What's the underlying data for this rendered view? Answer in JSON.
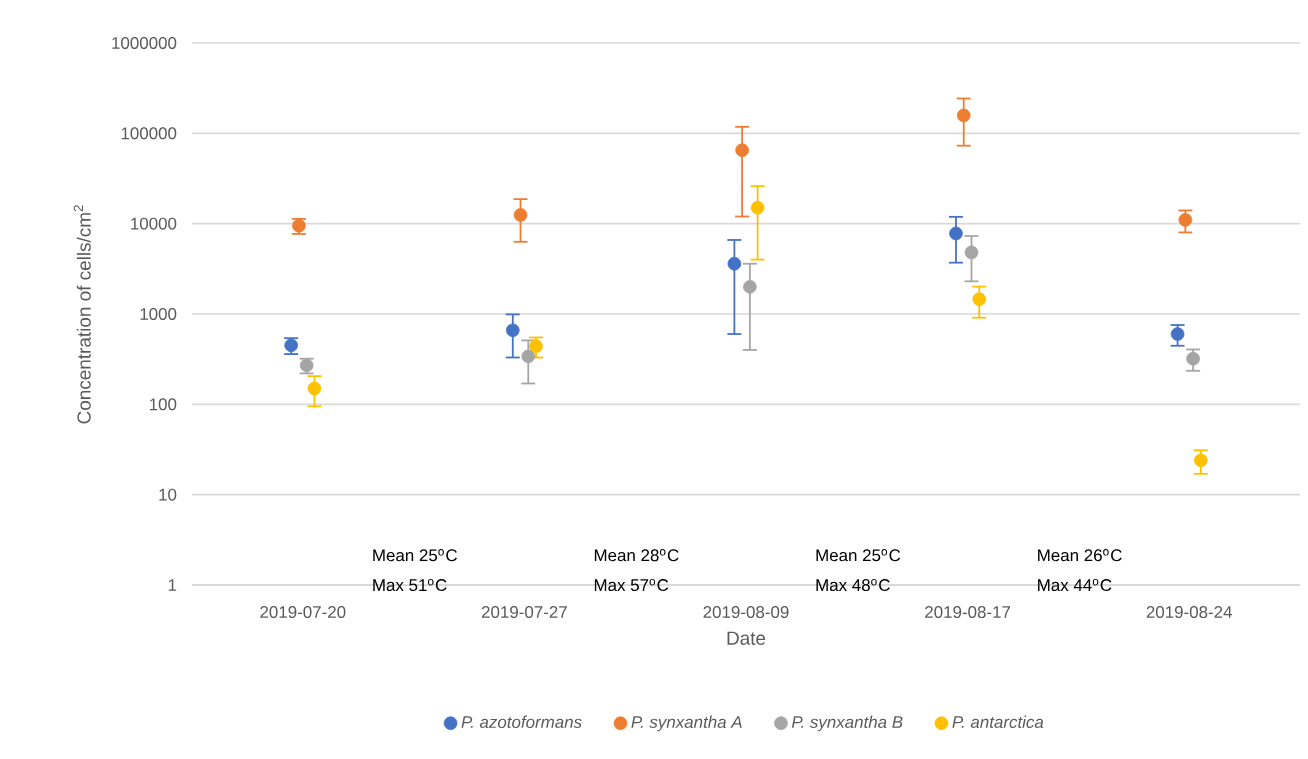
{
  "chart_data": {
    "type": "scatter",
    "ylabel": "Concentration of cells/cm$^{2}$",
    "xlabel": "Date",
    "categories": [
      "2019-07-20",
      "2019-07-27",
      "2019-08-09",
      "2019-08-17",
      "2019-08-24"
    ],
    "series": [
      {
        "name": "P. azotoformans",
        "color": "#4472c4",
        "values": [
          450,
          660,
          3600,
          7800,
          600
        ],
        "errors": [
          90,
          330,
          3000,
          4100,
          155
        ]
      },
      {
        "name": "P. synxantha A",
        "color": "#ed7d31",
        "values": [
          9500,
          12500,
          65000,
          158000,
          11000
        ],
        "errors": [
          1800,
          6200,
          53000,
          85000,
          3000
        ]
      },
      {
        "name": "P. synxantha B",
        "color": "#a5a5a5",
        "values": [
          270,
          340,
          2000,
          4800,
          320
        ],
        "errors": [
          50,
          170,
          1600,
          2500,
          85
        ]
      },
      {
        "name": "P. antarctica",
        "color": "#ffc000",
        "values": [
          150,
          440,
          15000,
          1460,
          24
        ],
        "errors": [
          55,
          110,
          11000,
          550,
          7
        ]
      }
    ],
    "ylim": [
      1,
      1000000
    ],
    "yticks": [
      1,
      10,
      100,
      1000,
      10000,
      100000,
      1000000
    ],
    "log": "y",
    "grid": "y",
    "legend": "bottom",
    "marker": "circle",
    "annotations": [
      "Mean 25$^{o}$C",
      "Max 51$^{o}$C",
      "Mean 28$^{o}$C",
      "Max 57$^{o}$C",
      "Mean 25$^{o}$C",
      "Max 48$^{o}$C",
      "Mean 26$^{o}$C",
      "Max 44$^{o}$C"
    ]
  }
}
